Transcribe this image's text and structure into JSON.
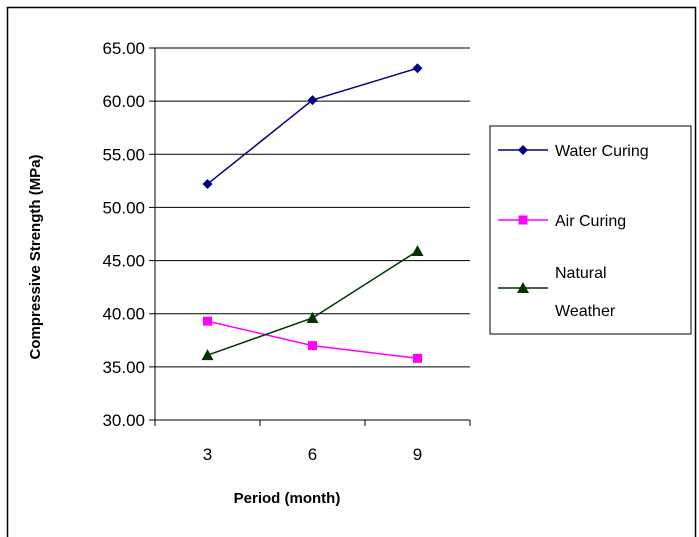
{
  "chart_data": {
    "type": "line",
    "categories": [
      "3",
      "6",
      "9"
    ],
    "series": [
      {
        "name": "Water Curing",
        "values": [
          52.2,
          60.1,
          63.1
        ],
        "color": "#000080",
        "marker": "diamond"
      },
      {
        "name": "Air Curing",
        "values": [
          39.3,
          37.0,
          35.8
        ],
        "color": "#ff00ff",
        "marker": "square"
      },
      {
        "name": "Natural Weather",
        "name_lines": [
          "Natural",
          "Weather"
        ],
        "values": [
          36.1,
          39.6,
          45.9
        ],
        "color": "#003300",
        "marker": "triangle"
      }
    ],
    "xlabel": "Period (month)",
    "ylabel": "Compressive Strength (MPa)",
    "ylim": [
      30,
      65
    ],
    "ytick_step": 5,
    "ytick_labels": [
      "30.00",
      "35.00",
      "40.00",
      "45.00",
      "50.00",
      "55.00",
      "60.00",
      "65.00"
    ],
    "grid": "horizontal",
    "legend_position": "right"
  }
}
